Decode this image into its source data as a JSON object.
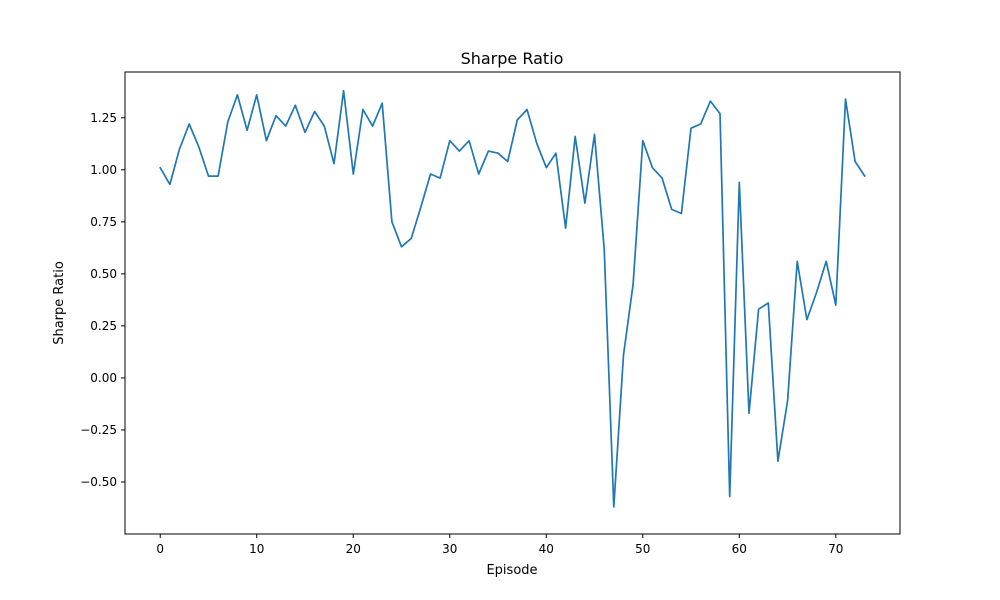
{
  "chart_data": {
    "type": "line",
    "title": "Sharpe Ratio",
    "xlabel": "Episode",
    "ylabel": "Sharpe Ratio",
    "xlim": [
      -3.65,
      76.65
    ],
    "ylim": [
      -0.75,
      1.47
    ],
    "x_ticks": [
      0,
      10,
      20,
      30,
      40,
      50,
      60,
      70
    ],
    "x_tick_labels": [
      "0",
      "10",
      "20",
      "30",
      "40",
      "50",
      "60",
      "70"
    ],
    "y_ticks": [
      -0.5,
      -0.25,
      0.0,
      0.25,
      0.5,
      0.75,
      1.0,
      1.25
    ],
    "y_tick_labels": [
      "−0.50",
      "−0.25",
      "0.00",
      "0.25",
      "0.50",
      "0.75",
      "1.00",
      "1.25"
    ],
    "grid": false,
    "color": "#1f77b4",
    "x": [
      0,
      1,
      2,
      3,
      4,
      5,
      6,
      7,
      8,
      9,
      10,
      11,
      12,
      13,
      14,
      15,
      16,
      17,
      18,
      19,
      20,
      21,
      22,
      23,
      24,
      25,
      26,
      27,
      28,
      29,
      30,
      31,
      32,
      33,
      34,
      35,
      36,
      37,
      38,
      39,
      40,
      41,
      42,
      43,
      44,
      45,
      46,
      47,
      48,
      49,
      50,
      51,
      52,
      53,
      54,
      55,
      56,
      57,
      58,
      59,
      60,
      61,
      62,
      63,
      64,
      65,
      66,
      67,
      68,
      69,
      70,
      71,
      72,
      73
    ],
    "y": [
      1.01,
      0.93,
      1.1,
      1.22,
      1.11,
      0.97,
      0.97,
      1.23,
      1.36,
      1.19,
      1.36,
      1.14,
      1.26,
      1.21,
      1.31,
      1.18,
      1.28,
      1.21,
      1.03,
      1.38,
      0.98,
      1.29,
      1.21,
      1.32,
      0.75,
      0.63,
      0.67,
      0.82,
      0.98,
      0.96,
      1.14,
      1.09,
      1.14,
      0.98,
      1.09,
      1.08,
      1.04,
      1.24,
      1.29,
      1.13,
      1.01,
      1.08,
      0.72,
      1.16,
      0.84,
      1.17,
      0.62,
      -0.62,
      0.11,
      0.45,
      1.14,
      1.01,
      0.96,
      0.81,
      0.79,
      1.2,
      1.22,
      1.33,
      1.27,
      -0.57,
      0.94,
      -0.17,
      0.33,
      0.36,
      -0.4,
      -0.11,
      0.56,
      0.28,
      0.41,
      0.56,
      0.35,
      1.34,
      1.04,
      0.97
    ]
  }
}
